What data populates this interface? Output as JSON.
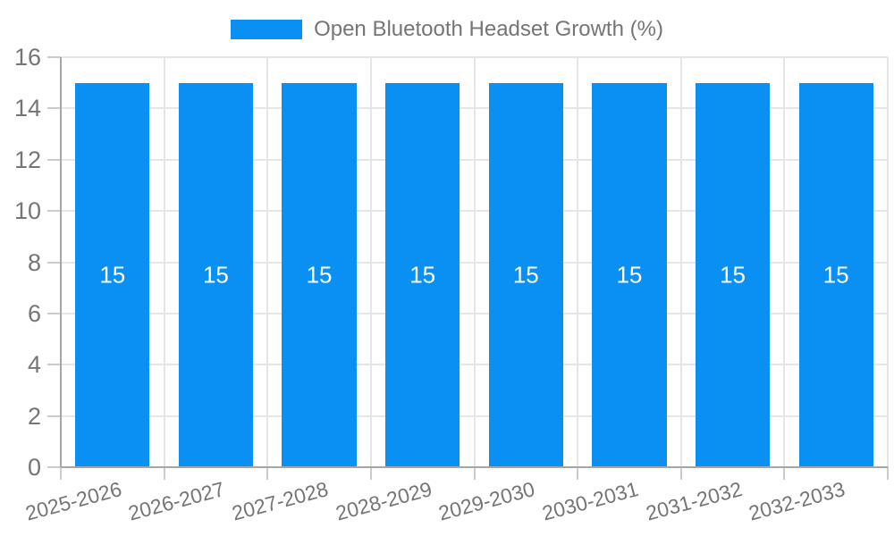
{
  "legend": {
    "label": "Open Bluetooth Headset Growth (%)"
  },
  "chart_data": {
    "type": "bar",
    "title": "Open Bluetooth Headset Growth (%)",
    "series_name": "Open Bluetooth Headset Growth (%)",
    "categories": [
      "2025-2026",
      "2026-2027",
      "2027-2028",
      "2028-2029",
      "2029-2030",
      "2030-2031",
      "2031-2032",
      "2032-2033"
    ],
    "values": [
      15,
      15,
      15,
      15,
      15,
      15,
      15,
      15
    ],
    "bar_labels": [
      "15",
      "15",
      "15",
      "15",
      "15",
      "15",
      "15",
      "15"
    ],
    "xlabel": "",
    "ylabel": "",
    "ylim": [
      0,
      16
    ],
    "yticks": [
      0,
      2,
      4,
      6,
      8,
      10,
      12,
      14,
      16
    ],
    "grid": true,
    "legend_position": "top",
    "x_label_rotation_deg": -15,
    "colors": {
      "bar": "#0a8ff2",
      "bar_label": "#ffffff",
      "gridline": "#e6e6e6",
      "tick": "#cccccc",
      "axis_line": "#a6a6a6",
      "axis_text": "#757575"
    }
  }
}
